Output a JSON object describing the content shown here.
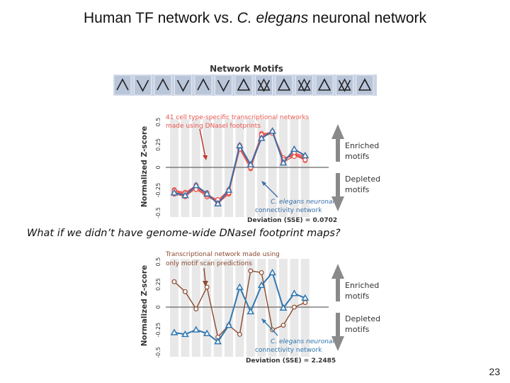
{
  "slide": {
    "title_main": "Human TF network vs. ",
    "title_italic": "C. elegans",
    "title_rest": " neuronal network",
    "question": "What if we didn’t have genome-wide DNaseI footprint maps?",
    "page_number": "23"
  },
  "panel_top": {
    "header": "Network Motifs",
    "annotation_line1": "41 cell type-specific transcriptional networks",
    "annotation_line2": "made using DNaseI footprints",
    "ylabel": "Normalized Z-score",
    "yticks": [
      "0.5",
      "0.25",
      "0",
      "-0.25",
      "-0.5"
    ],
    "enriched_label_1": "Enriched",
    "enriched_label_2": "motifs",
    "depleted_label_1": "Depleted",
    "depleted_label_2": "motifs",
    "elegans_line1": "C. elegans neuronal",
    "elegans_line2": "connectivity network",
    "deviation": "Deviation (SSE) = 0.0702"
  },
  "panel_bottom": {
    "annotation_line1": "Transcriptional network made using",
    "annotation_line2": "only motif scan predictions",
    "ylabel": "Normalized Z-score",
    "yticks": [
      "0.5",
      "0.25",
      "0",
      "-0.25",
      "-0.5"
    ],
    "enriched_label_1": "Enriched",
    "enriched_label_2": "motifs",
    "depleted_label_1": "Depleted",
    "depleted_label_2": "motifs",
    "elegans_line1": "C. elegans neuronal",
    "elegans_line2": "connectivity network",
    "deviation": "Deviation (SSE) = 2.2485"
  },
  "chart_data": [
    {
      "type": "line",
      "x": [
        1,
        2,
        3,
        4,
        5,
        6,
        7,
        8,
        9,
        10,
        11,
        12,
        13
      ],
      "ylim": [
        -0.5,
        0.5
      ],
      "ylabel": "Normalized Z-score",
      "series": [
        {
          "name": "41 cell type-specific transcriptional networks",
          "values": [
            -0.27,
            -0.3,
            -0.22,
            -0.3,
            -0.38,
            -0.27,
            0.22,
            0.01,
            0.35,
            0.4,
            0.08,
            0.14,
            0.1
          ]
        },
        {
          "name": "C. elegans neuronal connectivity network",
          "values": [
            -0.28,
            -0.31,
            -0.2,
            -0.29,
            -0.4,
            -0.25,
            0.24,
            0.03,
            0.32,
            0.4,
            0.05,
            0.2,
            0.13
          ]
        }
      ],
      "colors": {
        "footprint": "#e8554f",
        "elegans": "#3a6fa8",
        "gray": "#888888"
      }
    },
    {
      "type": "line",
      "x": [
        1,
        2,
        3,
        4,
        5,
        6,
        7,
        8,
        9,
        10,
        11,
        12,
        13
      ],
      "ylim": [
        -0.5,
        0.5
      ],
      "ylabel": "Normalized Z-score",
      "series": [
        {
          "name": "Transcriptional network made using only motif scan predictions",
          "values": [
            0.28,
            0.17,
            -0.02,
            0.22,
            -0.33,
            -0.2,
            -0.3,
            0.4,
            0.38,
            -0.25,
            -0.2,
            0.0,
            0.05
          ]
        },
        {
          "name": "C. elegans neuronal connectivity network",
          "values": [
            -0.28,
            -0.3,
            -0.25,
            -0.29,
            -0.38,
            -0.2,
            0.22,
            -0.05,
            0.24,
            0.38,
            -0.01,
            0.15,
            0.1
          ]
        }
      ],
      "colors": {
        "motif": "#8b4a2f",
        "elegans": "#2f77b0"
      }
    }
  ]
}
